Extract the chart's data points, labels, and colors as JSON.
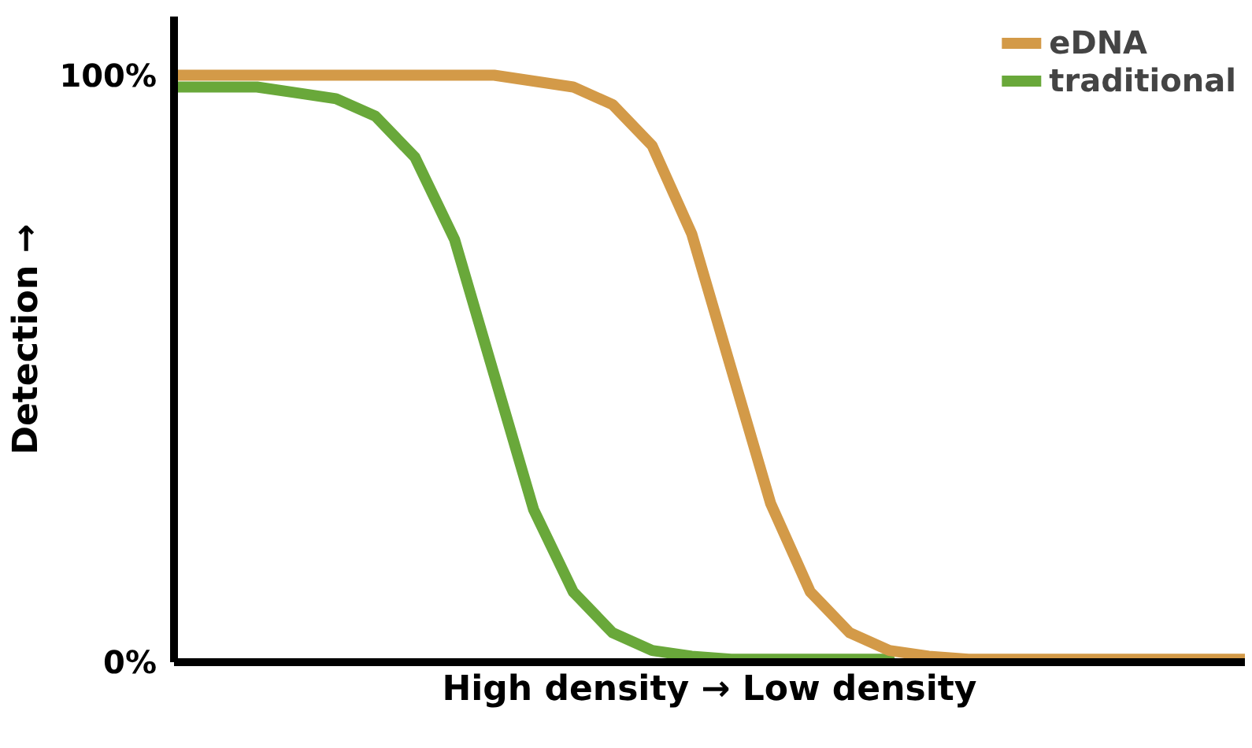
{
  "chart_data": {
    "type": "line",
    "xlabel": "High density → Low density",
    "ylabel": "Detection →",
    "categories": [
      null,
      null,
      null,
      null,
      null,
      null,
      null,
      null,
      null,
      null,
      null,
      null,
      null,
      null,
      null,
      null,
      null,
      null,
      null,
      null,
      null,
      null,
      null,
      null,
      null,
      null,
      null,
      null
    ],
    "series": [
      {
        "name": "eDNA",
        "color": "#d39a48",
        "values": [
          100,
          100,
          100,
          100,
          100,
          100,
          100,
          100,
          100,
          99,
          98,
          95,
          88,
          73,
          50,
          27,
          12,
          5,
          2,
          1,
          0.5,
          0.5,
          0.5,
          0.5,
          0.5,
          0.5,
          0.5,
          0.5
        ]
      },
      {
        "name": "traditional",
        "color": "#69a83a",
        "values": [
          98,
          98,
          98,
          97,
          96,
          93,
          86,
          72,
          49,
          26,
          12,
          5,
          2,
          1,
          0.5,
          0.5,
          0.5,
          0.5,
          0.5,
          null,
          null,
          null,
          null,
          null,
          null,
          null,
          null,
          null
        ]
      }
    ],
    "ylim": [
      0,
      110
    ],
    "yticks": [
      {
        "value": 0,
        "label": "0%"
      },
      {
        "value": 100,
        "label": "100%"
      }
    ],
    "tick_labels": "y",
    "grid": false,
    "legend": "top right",
    "marker": "none",
    "line_style": "solid"
  }
}
